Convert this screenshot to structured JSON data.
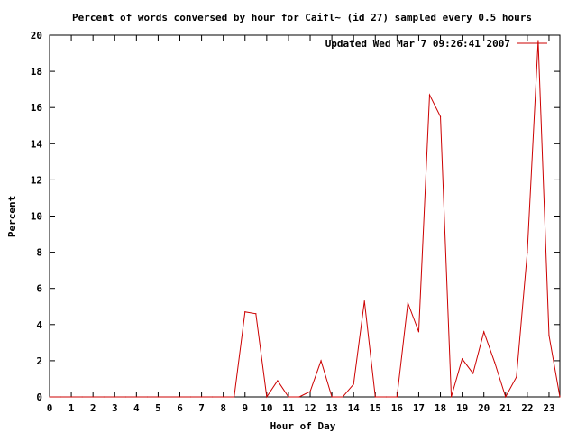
{
  "chart_data": {
    "type": "line",
    "title": "Percent of words conversed by hour for Caifl~ (id 27) sampled every 0.5 hours",
    "xlabel": "Hour of Day",
    "ylabel": "Percent",
    "xlim": [
      0,
      23.5
    ],
    "ylim": [
      0,
      20
    ],
    "grid": false,
    "legend_position": "top-right",
    "x_ticks": [
      0,
      1,
      2,
      3,
      4,
      5,
      6,
      7,
      8,
      9,
      10,
      11,
      12,
      13,
      14,
      15,
      16,
      17,
      18,
      19,
      20,
      21,
      22,
      23
    ],
    "y_ticks": [
      0,
      2,
      4,
      6,
      8,
      10,
      12,
      14,
      16,
      18,
      20
    ],
    "series": [
      {
        "name": "Updated Wed Mar  7 09:26:41 2007",
        "color": "#cc0000",
        "x": [
          0,
          0.5,
          1,
          1.5,
          2,
          2.5,
          3,
          3.5,
          4,
          4.5,
          5,
          5.5,
          6,
          6.5,
          7,
          7.5,
          8,
          8.5,
          9,
          9.5,
          10,
          10.5,
          11,
          11.5,
          12,
          12.5,
          13,
          13.5,
          14,
          14.5,
          15,
          15.5,
          16,
          16.5,
          17,
          17.5,
          18,
          18.5,
          19,
          19.5,
          20,
          20.5,
          21,
          21.5,
          22,
          22.5,
          23,
          23.5
        ],
        "values": [
          0,
          0,
          0,
          0,
          0,
          0,
          0,
          0,
          0,
          0,
          0,
          0,
          0,
          0,
          0,
          0,
          0,
          0,
          4.7,
          4.6,
          0,
          0.9,
          0,
          0,
          0.3,
          2.0,
          0,
          0,
          0.7,
          5.3,
          0,
          0,
          0,
          5.2,
          3.6,
          16.7,
          15.5,
          0,
          2.1,
          1.3,
          3.6,
          1.9,
          0,
          1.1,
          8.0,
          19.7,
          3.4,
          0
        ]
      }
    ]
  }
}
